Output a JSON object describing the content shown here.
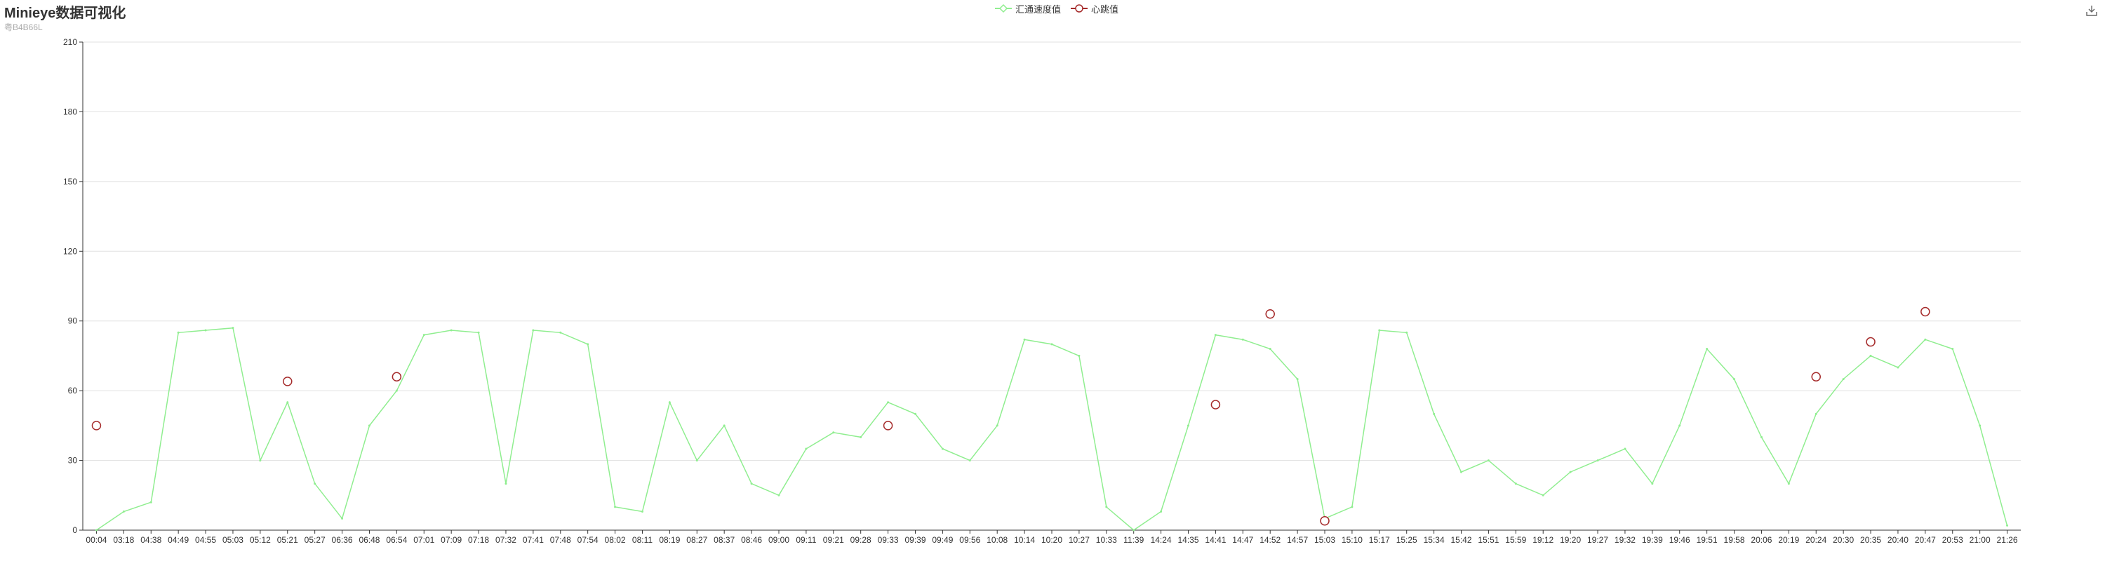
{
  "title": "Minieye数据可视化",
  "subtitle": "粤B4B66L",
  "legend": [
    "汇通速度值",
    "心跳值"
  ],
  "toolbox": {
    "icon": "download-icon"
  },
  "colors": {
    "speed": "#90ee90",
    "heartbeat_stroke": "#a52a2a",
    "heartbeat_fill": "#ffffff",
    "grid": "#e0e0e0",
    "axis": "#333333"
  },
  "chart_data": {
    "type": "line",
    "title": "Minieye数据可视化",
    "ylim": [
      0,
      210
    ],
    "yticks": [
      0,
      30,
      60,
      90,
      120,
      150,
      180,
      210
    ],
    "x": [
      "00:04",
      "03:18",
      "04:38",
      "04:49",
      "04:55",
      "05:03",
      "05:12",
      "05:21",
      "05:27",
      "06:36",
      "06:48",
      "06:54",
      "07:01",
      "07:09",
      "07:18",
      "07:32",
      "07:41",
      "07:48",
      "07:54",
      "08:02",
      "08:11",
      "08:19",
      "08:27",
      "08:37",
      "08:46",
      "09:00",
      "09:11",
      "09:21",
      "09:28",
      "09:33",
      "09:39",
      "09:49",
      "09:56",
      "10:08",
      "10:14",
      "10:20",
      "10:27",
      "10:33",
      "11:39",
      "14:24",
      "14:35",
      "14:41",
      "14:47",
      "14:52",
      "14:57",
      "15:03",
      "15:10",
      "15:17",
      "15:25",
      "15:34",
      "15:42",
      "15:51",
      "15:59",
      "19:12",
      "19:20",
      "19:27",
      "19:32",
      "19:39",
      "19:46",
      "19:51",
      "19:58",
      "20:06",
      "20:19",
      "20:24",
      "20:30",
      "20:35",
      "20:40",
      "20:47",
      "20:53",
      "21:00",
      "21:26"
    ],
    "series": [
      {
        "name": "汇通速度值",
        "values": [
          0,
          8,
          12,
          85,
          86,
          87,
          30,
          55,
          20,
          5,
          45,
          60,
          84,
          86,
          85,
          20,
          86,
          85,
          80,
          10,
          8,
          55,
          30,
          45,
          20,
          15,
          35,
          42,
          40,
          55,
          50,
          35,
          30,
          45,
          82,
          80,
          75,
          10,
          0,
          8,
          45,
          84,
          82,
          78,
          65,
          5,
          10,
          86,
          85,
          50,
          25,
          30,
          20,
          15,
          25,
          30,
          35,
          20,
          45,
          78,
          65,
          40,
          20,
          50,
          65,
          75,
          70,
          82,
          78,
          45,
          2
        ]
      },
      {
        "name": "心跳值",
        "values": [
          45,
          null,
          null,
          null,
          null,
          null,
          null,
          64,
          null,
          null,
          null,
          66,
          null,
          null,
          null,
          null,
          null,
          null,
          null,
          null,
          null,
          null,
          null,
          null,
          null,
          null,
          null,
          null,
          null,
          45,
          null,
          null,
          null,
          null,
          null,
          null,
          null,
          null,
          null,
          null,
          null,
          54,
          null,
          93,
          null,
          4,
          null,
          null,
          null,
          null,
          null,
          null,
          null,
          null,
          null,
          null,
          null,
          null,
          null,
          null,
          null,
          null,
          null,
          66,
          null,
          81,
          null,
          94,
          null,
          null,
          null
        ]
      }
    ],
    "grid": true,
    "legend_position": "top-center"
  }
}
